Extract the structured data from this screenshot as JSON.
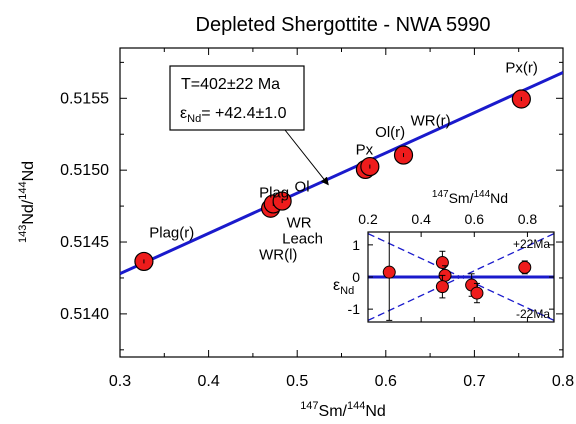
{
  "chart_data": [
    {
      "type": "scatter",
      "title": "Depleted Shergottite - NWA 5990",
      "xlabel": {
        "sup": "147",
        "base1": "Sm/",
        "sup2": "144",
        "base2": "Nd"
      },
      "ylabel": {
        "sup": "143",
        "base1": "Nd/",
        "sup2": "144",
        "base2": "Nd"
      },
      "xlim": [
        0.3,
        0.8
      ],
      "ylim": [
        0.5137,
        0.51585
      ],
      "xticks": [
        0.3,
        0.4,
        0.5,
        0.6,
        0.7,
        0.8
      ],
      "xtick_labels": [
        "0.3",
        "0.4",
        "0.5",
        "0.6",
        "0.7",
        "0.8"
      ],
      "yticks": [
        0.514,
        0.5145,
        0.515,
        0.5155
      ],
      "ytick_labels": [
        "0.5140",
        "0.5145",
        "0.5150",
        "0.5155"
      ],
      "grid": false,
      "line_color": "#1a1acc",
      "point_color": "#ee1c1c",
      "isochron": {
        "x": [
          0.3,
          0.8
        ],
        "y": [
          0.51428,
          0.51568
        ]
      },
      "points": [
        {
          "x": 0.327,
          "y": 0.514365,
          "err": 6e-05
        },
        {
          "x": 0.47,
          "y": 0.514735,
          "err": 4e-05
        },
        {
          "x": 0.473,
          "y": 0.514765,
          "err": 4e-05
        },
        {
          "x": 0.483,
          "y": 0.514785,
          "err": 4e-05
        },
        {
          "x": 0.577,
          "y": 0.515005,
          "err": 3e-05
        },
        {
          "x": 0.582,
          "y": 0.515025,
          "err": 3e-05
        },
        {
          "x": 0.62,
          "y": 0.515105,
          "err": 3e-05
        },
        {
          "x": 0.753,
          "y": 0.515495,
          "err": 3e-05
        }
      ],
      "point_labels": [
        {
          "text": "Plag(r)",
          "x": 0.333,
          "y": 0.51453
        },
        {
          "text": "Plag",
          "x": 0.457,
          "y": 0.51481
        },
        {
          "text": "Ol",
          "x": 0.497,
          "y": 0.51485
        },
        {
          "text": "WR",
          "x": 0.488,
          "y": 0.5146
        },
        {
          "text": "Leach",
          "x": 0.483,
          "y": 0.51449
        },
        {
          "text": "WR(l)",
          "x": 0.457,
          "y": 0.51438
        },
        {
          "text": "Px",
          "x": 0.566,
          "y": 0.51511
        },
        {
          "text": "Ol(r)",
          "x": 0.588,
          "y": 0.51523
        },
        {
          "text": "WR(r)",
          "x": 0.628,
          "y": 0.51531
        },
        {
          "text": "Px(r)",
          "x": 0.735,
          "y": 0.51568
        }
      ],
      "annotation": {
        "line1": "T=402±22 Ma",
        "line2_pre": "ε",
        "line2_sub": "Nd",
        "line2_post": "= +42.4±1.0",
        "arrow_to": {
          "x": 0.535,
          "y": 0.5149
        }
      }
    },
    {
      "type": "scatter",
      "title": "",
      "xlabel": {
        "sup": "147",
        "base1": "Sm/",
        "sup2": "144",
        "base2": "Nd"
      },
      "ylabel": {
        "pre": "ε",
        "sub": "Nd"
      },
      "xlim": [
        0.2,
        0.9
      ],
      "ylim": [
        -1.4,
        1.4
      ],
      "xticks": [
        0.2,
        0.4,
        0.6,
        0.8
      ],
      "xtick_labels": [
        "0.2",
        "0.4",
        "0.6",
        "0.8"
      ],
      "yticks": [
        -1,
        0,
        1
      ],
      "ytick_labels": [
        "-1",
        "0",
        "1"
      ],
      "grid": false,
      "reference_line": 0,
      "envelope_labels": [
        "+22Ma",
        "-22Ma"
      ],
      "envelope": {
        "upper": [
          [
            0.2,
            -1.35
          ],
          [
            0.9,
            1.35
          ]
        ],
        "lower": [
          [
            0.2,
            1.35
          ],
          [
            0.9,
            -1.35
          ]
        ]
      },
      "points": [
        {
          "x": 0.28,
          "y": 0.15,
          "err": 1.5
        },
        {
          "x": 0.48,
          "y": 0.45,
          "err": 0.35
        },
        {
          "x": 0.49,
          "y": 0.05,
          "err": 0.3
        },
        {
          "x": 0.48,
          "y": -0.3,
          "err": 0.35
        },
        {
          "x": 0.59,
          "y": -0.25,
          "err": 0.35
        },
        {
          "x": 0.61,
          "y": -0.5,
          "err": 0.3
        },
        {
          "x": 0.79,
          "y": 0.3,
          "err": 0.2
        }
      ]
    }
  ]
}
